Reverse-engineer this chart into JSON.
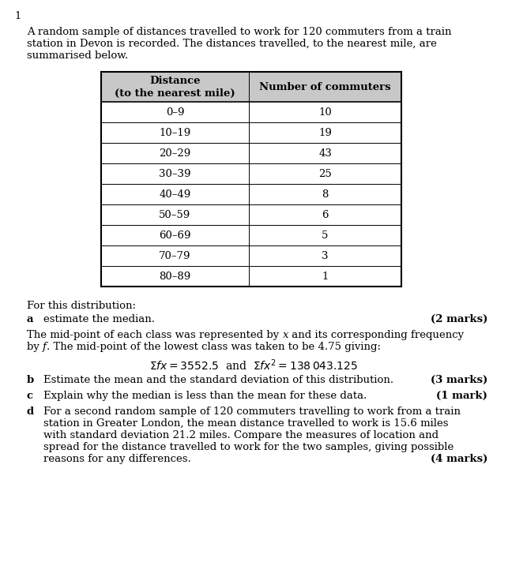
{
  "question_number": "1",
  "intro_lines": [
    "A random sample of distances travelled to work for 120 commuters from a train",
    "station in Devon is recorded. The distances travelled, to the nearest mile, are",
    "summarised below."
  ],
  "table_rows": [
    [
      "0–9",
      "10"
    ],
    [
      "10–19",
      "19"
    ],
    [
      "20–29",
      "43"
    ],
    [
      "30–39",
      "25"
    ],
    [
      "40–49",
      "8"
    ],
    [
      "50–59",
      "6"
    ],
    [
      "60–69",
      "5"
    ],
    [
      "70–79",
      "3"
    ],
    [
      "80–89",
      "1"
    ]
  ],
  "section_label": "For this distribution:",
  "part_a_label": "a",
  "part_a_text": "estimate the median.",
  "part_a_marks": "(2 marks)",
  "midpoint_line1": "The mid-point of each class was represented by x and its corresponding frequency",
  "midpoint_line2": "by f. The mid-point of the lowest class was taken to be 4.75 giving:",
  "part_b_label": "b",
  "part_b_text": "Estimate the mean and the standard deviation of this distribution.",
  "part_b_marks": "(3 marks)",
  "part_c_label": "c",
  "part_c_text": "Explain why the median is less than the mean for these data.",
  "part_c_marks": "(1 mark)",
  "part_d_label": "d",
  "part_d_lines": [
    "For a second random sample of 120 commuters travelling to work from a train",
    "station in Greater London, the mean distance travelled to work is 15.6 miles",
    "with standard deviation 21.2 miles. Compare the measures of location and",
    "spread for the distance travelled to work for the two samples, giving possible",
    "reasons for any differences."
  ],
  "part_d_marks": "(4 marks)",
  "bg_color": "#ffffff",
  "header_bg": "#c8c8c8",
  "table_border": "#000000"
}
